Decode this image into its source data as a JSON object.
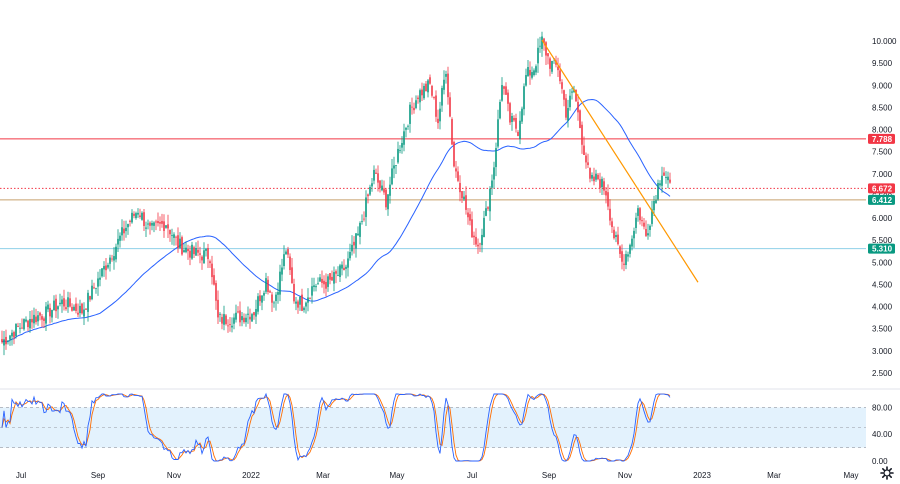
{
  "chart_data": [
    {
      "type": "candlestick",
      "price_axis": {
        "ticks": [
          "10.000",
          "9.500",
          "9.000",
          "8.500",
          "8.000",
          "7.500",
          "7.000",
          "6.500",
          "6.000",
          "5.500",
          "5.000",
          "4.500",
          "4.000",
          "3.500",
          "3.000",
          "2.500"
        ],
        "range": [
          2.3,
          10.2
        ]
      },
      "time_axis": {
        "ticks": [
          "Jul",
          "Sep",
          "Nov",
          "2022",
          "Mar",
          "May",
          "Jul",
          "Sep",
          "Nov",
          "2023",
          "Mar",
          "May"
        ]
      },
      "price_tags": [
        {
          "label": "7.788",
          "value": 7.788,
          "color": "#f23645"
        },
        {
          "label": "6.672",
          "value": 6.672,
          "color": "#f23645"
        },
        {
          "label": "6.412",
          "value": 6.412,
          "color": "#089981"
        },
        {
          "label": "5.310",
          "value": 5.31,
          "color": "#089981"
        }
      ],
      "horizontal_levels": [
        {
          "value": 7.788,
          "color": "#f23645",
          "style": "solid"
        },
        {
          "value": 6.672,
          "color": "#f23645",
          "style": "dotted"
        },
        {
          "value": 6.412,
          "color": "#c8a06e",
          "style": "solid"
        },
        {
          "value": 5.31,
          "color": "#8fd0e8",
          "style": "solid"
        }
      ],
      "trendline": {
        "from": {
          "bar": 270,
          "price": 10.02
        },
        "to": {
          "bar": 348,
          "price": 4.55
        },
        "color": "#ff9800"
      },
      "moving_average": {
        "color": "#2962ff"
      },
      "close_path": [
        [
          0,
          3.2
        ],
        [
          6,
          3.45
        ],
        [
          14,
          3.72
        ],
        [
          22,
          3.85
        ],
        [
          30,
          4.1
        ],
        [
          40,
          3.9
        ],
        [
          48,
          4.6
        ],
        [
          56,
          5.3
        ],
        [
          62,
          5.8
        ],
        [
          68,
          6.2
        ],
        [
          74,
          5.7
        ],
        [
          82,
          5.9
        ],
        [
          88,
          5.4
        ],
        [
          96,
          5.2
        ],
        [
          104,
          5.15
        ],
        [
          108,
          3.7
        ],
        [
          118,
          3.75
        ],
        [
          126,
          3.9
        ],
        [
          132,
          4.6
        ],
        [
          136,
          4.1
        ],
        [
          142,
          5.3
        ],
        [
          146,
          4.2
        ],
        [
          150,
          4.05
        ],
        [
          156,
          4.5
        ],
        [
          164,
          4.55
        ],
        [
          172,
          4.9
        ],
        [
          178,
          5.6
        ],
        [
          186,
          7.0
        ],
        [
          192,
          6.4
        ],
        [
          198,
          7.5
        ],
        [
          204,
          8.4
        ],
        [
          208,
          8.8
        ],
        [
          214,
          9.0
        ],
        [
          218,
          8.2
        ],
        [
          222,
          9.4
        ],
        [
          226,
          7.2
        ],
        [
          230,
          6.6
        ],
        [
          234,
          5.8
        ],
        [
          238,
          5.4
        ],
        [
          242,
          6.1
        ],
        [
          246,
          7.2
        ],
        [
          250,
          9.1
        ],
        [
          254,
          8.2
        ],
        [
          258,
          8.0
        ],
        [
          262,
          9.2
        ],
        [
          266,
          9.4
        ],
        [
          270,
          10.0
        ],
        [
          274,
          9.5
        ],
        [
          278,
          9.4
        ],
        [
          282,
          8.4
        ],
        [
          286,
          8.9
        ],
        [
          290,
          7.8
        ],
        [
          294,
          6.8
        ],
        [
          298,
          6.9
        ],
        [
          302,
          6.6
        ],
        [
          306,
          5.6
        ],
        [
          310,
          5.0
        ],
        [
          314,
          5.4
        ],
        [
          318,
          6.2
        ],
        [
          322,
          5.6
        ],
        [
          326,
          6.4
        ],
        [
          330,
          7.1
        ],
        [
          334,
          6.8
        ]
      ],
      "oscillator": {
        "ticks": [
          "80.00",
          "40.00",
          "0.00"
        ],
        "range": [
          0,
          100
        ],
        "band": [
          20,
          80
        ],
        "k_color": "#2962ff",
        "d_color": "#ff6d00"
      }
    }
  ]
}
